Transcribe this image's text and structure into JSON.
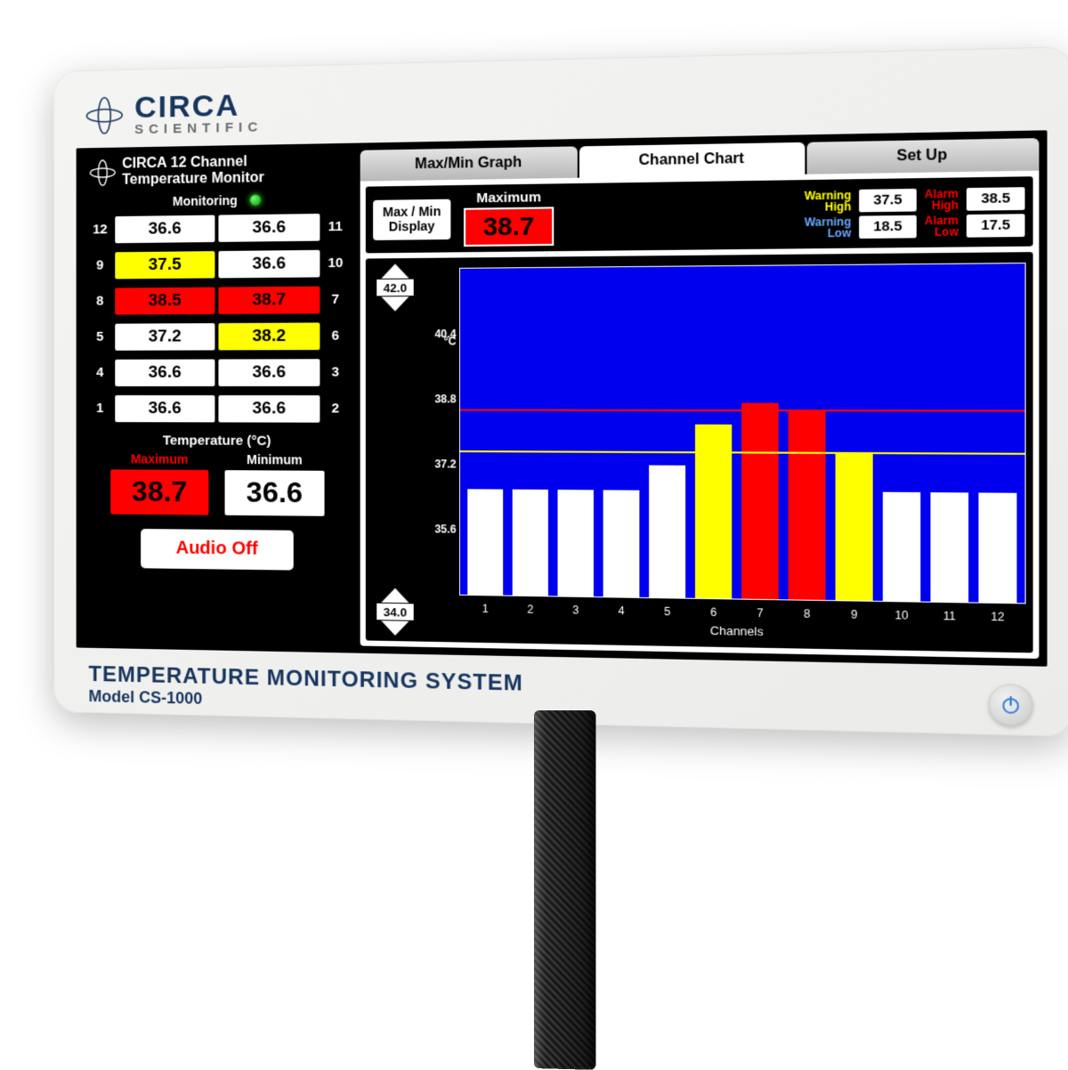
{
  "brand": {
    "name": "CIRCA",
    "sub": "SCIENTIFIC",
    "color": "#17355f"
  },
  "product": {
    "title": "TEMPERATURE MONITORING SYSTEM",
    "model": "Model CS-1000"
  },
  "left": {
    "title_l1": "CIRCA 12 Channel",
    "title_l2": "Temperature Monitor",
    "monitoring_label": "Monitoring",
    "led_color": "#1fd41f",
    "rows": [
      {
        "left_ch": 12,
        "left_val": "36.6",
        "left_state": "white",
        "right_val": "36.6",
        "right_state": "white",
        "right_ch": 11
      },
      {
        "left_ch": 9,
        "left_val": "37.5",
        "left_state": "yellow",
        "right_val": "36.6",
        "right_state": "white",
        "right_ch": 10
      },
      {
        "left_ch": 8,
        "left_val": "38.5",
        "left_state": "red",
        "right_val": "38.7",
        "right_state": "red",
        "right_ch": 7
      },
      {
        "left_ch": 5,
        "left_val": "37.2",
        "left_state": "white",
        "right_val": "38.2",
        "right_state": "yellow",
        "right_ch": 6
      },
      {
        "left_ch": 4,
        "left_val": "36.6",
        "left_state": "white",
        "right_val": "36.6",
        "right_state": "white",
        "right_ch": 3
      },
      {
        "left_ch": 1,
        "left_val": "36.6",
        "left_state": "white",
        "right_val": "36.6",
        "right_state": "white",
        "right_ch": 2
      }
    ],
    "units_label": "Temperature (°C)",
    "max_label": "Maximum",
    "min_label": "Minimum",
    "max_value": "38.7",
    "min_value": "36.6",
    "audio_button": "Audio Off"
  },
  "tabs": [
    {
      "label": "Max/Min Graph",
      "active": false
    },
    {
      "label": "Channel Chart",
      "active": true
    },
    {
      "label": "Set Up",
      "active": false
    }
  ],
  "top": {
    "maxmin_button": "Max / Min Display",
    "maximum_label": "Maximum",
    "maximum_value": "38.7",
    "warning_high_label": "Warning High",
    "warning_high_value": "37.5",
    "warning_low_label": "Warning Low",
    "warning_low_value": "18.5",
    "alarm_high_label": "Alarm High",
    "alarm_high_value": "38.5",
    "alarm_low_label": "Alarm Low",
    "alarm_low_value": "17.5"
  },
  "chart": {
    "type": "bar",
    "plot_bg": "#0000ee",
    "bar_default_color": "#ffffff",
    "bar_warning_color": "#ffff00",
    "bar_alarm_color": "#ff0000",
    "alarm_line_color": "#ff0000",
    "warning_line_color": "#ffff00",
    "y_top_spin": "42.0",
    "y_bottom_spin": "34.0",
    "y_unit": "°C",
    "ylim": [
      34.0,
      42.0
    ],
    "yticks": [
      35.6,
      37.2,
      38.8,
      40.4
    ],
    "alarm_high_line": 38.5,
    "warning_high_line": 37.5,
    "x_title": "Channels",
    "categories": [
      "1",
      "2",
      "3",
      "4",
      "5",
      "6",
      "7",
      "8",
      "9",
      "10",
      "11",
      "12"
    ],
    "values": [
      36.6,
      36.6,
      36.6,
      36.6,
      37.2,
      38.2,
      38.7,
      38.5,
      37.5,
      36.6,
      36.6,
      36.6
    ],
    "states": [
      "white",
      "white",
      "white",
      "white",
      "white",
      "yellow",
      "red",
      "red",
      "yellow",
      "white",
      "white",
      "white"
    ]
  },
  "state_colors": {
    "white": "#ffffff",
    "yellow": "#ffff00",
    "red": "#ff0000"
  }
}
